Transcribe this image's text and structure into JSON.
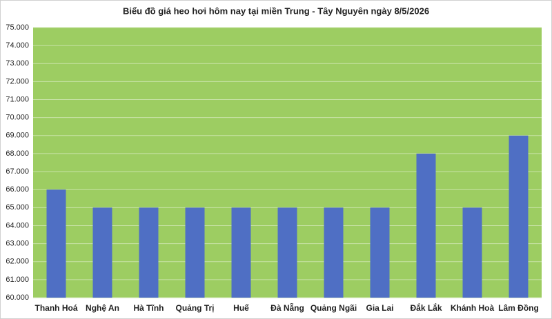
{
  "chart_data": {
    "type": "bar",
    "title": "Biểu đồ giá heo hơi hôm nay tại miền Trung - Tây Nguyên ngày 8/5/2026",
    "categories": [
      "Thanh Hoá",
      "Nghệ An",
      "Hà Tĩnh",
      "Quảng Trị",
      "Huế",
      "Đà Nẵng",
      "Quảng Ngãi",
      "Gia Lai",
      "Đắk Lắk",
      "Khánh Hoà",
      "Lâm Đồng"
    ],
    "values": [
      66000,
      65000,
      65000,
      65000,
      65000,
      65000,
      65000,
      65000,
      68000,
      65000,
      69000
    ],
    "color": "#4f6fc4",
    "background": "#9dcd62",
    "ylim": [
      60000,
      75000
    ],
    "yticks": [
      {
        "value": 60000,
        "label": "60.000"
      },
      {
        "value": 61000,
        "label": "61.000"
      },
      {
        "value": 62000,
        "label": "62.000"
      },
      {
        "value": 63000,
        "label": "63.000"
      },
      {
        "value": 64000,
        "label": "64.000"
      },
      {
        "value": 65000,
        "label": "65.000"
      },
      {
        "value": 66000,
        "label": "66.000"
      },
      {
        "value": 67000,
        "label": "67.000"
      },
      {
        "value": 68000,
        "label": "68.000"
      },
      {
        "value": 69000,
        "label": "69.000"
      },
      {
        "value": 70000,
        "label": "70.000"
      },
      {
        "value": 71000,
        "label": "71.000"
      },
      {
        "value": 72000,
        "label": "72.000"
      },
      {
        "value": 73000,
        "label": "73.000"
      },
      {
        "value": 74000,
        "label": "74.000"
      },
      {
        "value": 75000,
        "label": "75.000"
      }
    ],
    "grid": true
  }
}
